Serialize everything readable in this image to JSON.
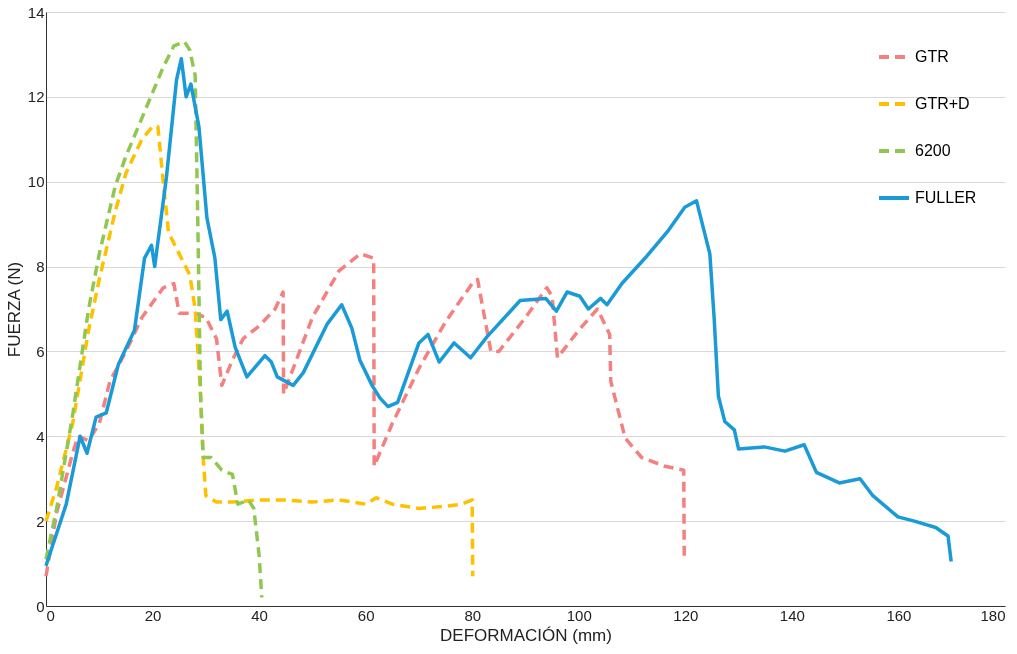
{
  "chart_data": {
    "type": "line",
    "xlabel": "DEFORMACIÓN (mm)",
    "ylabel": "FUERZA (N)",
    "xlim": [
      0,
      180
    ],
    "xticks": [
      0,
      20,
      40,
      60,
      80,
      100,
      120,
      140,
      160,
      180
    ],
    "ylim": [
      0,
      14
    ],
    "yticks": [
      0,
      2,
      4,
      6,
      8,
      10,
      12,
      14
    ],
    "grid": "y",
    "legend": "top right",
    "series": [
      {
        "name": "GTR",
        "color": "#f4817f",
        "line_style": "dashed",
        "x": [
          0,
          2,
          5,
          6,
          8,
          10,
          12,
          15,
          18,
          22,
          24,
          25,
          28,
          30,
          32,
          33,
          35,
          37,
          40,
          43,
          44.5,
          44.6,
          47,
          50,
          55,
          59,
          61.5,
          61.6,
          65,
          70,
          75,
          80,
          81,
          83.5,
          85,
          90,
          94,
          95,
          96,
          100,
          103.5,
          105.8,
          106,
          108.7,
          111.8,
          116,
          119.7,
          119.8
        ],
        "values": [
          0.7,
          2.2,
          3.6,
          4.0,
          3.9,
          4.3,
          5.3,
          6.0,
          6.8,
          7.5,
          7.6,
          6.9,
          6.9,
          6.8,
          6.3,
          5.2,
          5.8,
          6.3,
          6.6,
          7.0,
          7.4,
          5.0,
          5.8,
          6.8,
          7.9,
          8.3,
          8.2,
          3.3,
          4.3,
          5.6,
          6.7,
          7.6,
          7.7,
          6.0,
          6.0,
          6.8,
          7.5,
          7.3,
          5.85,
          6.5,
          7.0,
          6.4,
          5.3,
          3.96,
          3.5,
          3.3,
          3.2,
          1.1
        ]
      },
      {
        "name": "GTR+D",
        "color": "#ffc000",
        "line_style": "dashed",
        "x": [
          0,
          2,
          5,
          8,
          10,
          13,
          15,
          18,
          20,
          21,
          22,
          23,
          25,
          27,
          28,
          29,
          29.5,
          30,
          32,
          35,
          40,
          45,
          50,
          55,
          60,
          62,
          65,
          70,
          75,
          78,
          80,
          80.1
        ],
        "values": [
          2.0,
          2.8,
          4.3,
          6.5,
          7.7,
          9.3,
          10.2,
          11.0,
          11.3,
          11.3,
          10.0,
          8.8,
          8.3,
          7.8,
          7.0,
          5.0,
          3.5,
          2.6,
          2.45,
          2.45,
          2.5,
          2.5,
          2.45,
          2.5,
          2.4,
          2.55,
          2.4,
          2.3,
          2.35,
          2.4,
          2.5,
          0.7
        ]
      },
      {
        "name": "6200",
        "color": "#8fc850",
        "line_style": "dashed",
        "x": [
          0,
          2,
          5,
          8,
          10,
          13,
          15,
          18,
          20,
          22,
          24,
          26,
          27,
          28,
          28.5,
          29,
          29.5,
          31,
          33,
          35,
          36,
          38,
          39,
          40,
          40.5
        ],
        "values": [
          1.1,
          2.3,
          4.5,
          7.0,
          8.3,
          9.9,
          10.6,
          11.5,
          12.1,
          12.7,
          13.2,
          13.3,
          13.1,
          12.5,
          9.0,
          5.0,
          3.5,
          3.5,
          3.2,
          3.1,
          2.4,
          2.5,
          2.3,
          1.2,
          0.2
        ]
      },
      {
        "name": "FULLER",
        "color": "#1a9ad6",
        "line_style": "solid",
        "x": [
          0,
          3.8,
          6.4,
          7.7,
          9.4,
          11.3,
          13.6,
          16.6,
          18.5,
          19.8,
          20.4,
          22.6,
          24.5,
          25.4,
          26.3,
          27.2,
          28.7,
          30.2,
          31.7,
          32.8,
          34,
          35.5,
          37.7,
          41.1,
          42.3,
          43.4,
          46.4,
          48.3,
          52.8,
          55.5,
          57.4,
          58.9,
          61.2,
          62.7,
          64.2,
          66,
          70,
          71.7,
          73.8,
          76.6,
          79.7,
          82.8,
          89,
          93.8,
          95.8,
          97.8,
          100.2,
          101.8,
          104.1,
          105.3,
          108.1,
          112.8,
          116.8,
          119.9,
          122.1,
          124.6,
          125.4,
          126.2,
          127.4,
          129.2,
          130,
          134.8,
          138.7,
          142.3,
          144.6,
          148.9,
          152.8,
          155.2,
          159.9,
          163,
          167,
          169.3,
          169.9
        ],
        "values": [
          0.95,
          2.4,
          4.0,
          3.6,
          4.45,
          4.55,
          5.7,
          6.5,
          8.2,
          8.5,
          8.0,
          10.1,
          12.4,
          12.9,
          12.0,
          12.3,
          11.3,
          9.15,
          8.2,
          6.75,
          6.95,
          6.1,
          5.4,
          5.9,
          5.75,
          5.4,
          5.2,
          5.5,
          6.65,
          7.1,
          6.55,
          5.8,
          5.2,
          4.9,
          4.7,
          4.8,
          6.2,
          6.4,
          5.75,
          6.2,
          5.85,
          6.35,
          7.2,
          7.25,
          6.95,
          7.4,
          7.3,
          7.0,
          7.25,
          7.1,
          7.6,
          8.25,
          8.85,
          9.4,
          9.55,
          8.3,
          6.8,
          4.95,
          4.35,
          4.15,
          3.7,
          3.75,
          3.65,
          3.8,
          3.15,
          2.9,
          3.0,
          2.6,
          2.1,
          2.0,
          1.85,
          1.65,
          1.05
        ]
      }
    ]
  }
}
